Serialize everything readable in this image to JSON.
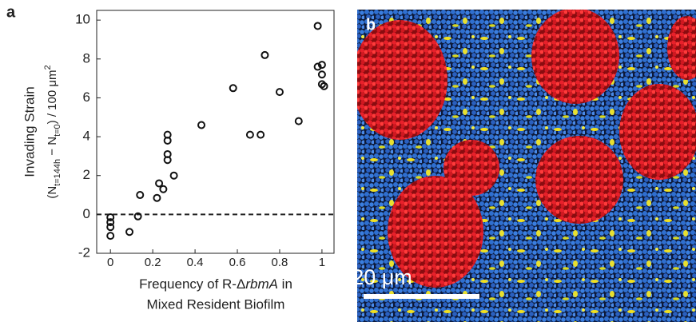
{
  "chart_data": {
    "type": "scatter",
    "panel_label": "a",
    "y_label_title": "Invading Strain",
    "y_label_formula": [
      "(N",
      "t=144h",
      " − N",
      "t=0",
      ") / 100 μm",
      "2"
    ],
    "x_label_line1": [
      "Frequency of R-Δ",
      "rbmA",
      " in"
    ],
    "x_label_line2": "Mixed Resident Biofilm",
    "x": [
      0,
      0,
      0,
      0,
      0.09,
      0.13,
      0.14,
      0.22,
      0.23,
      0.25,
      0.27,
      0.27,
      0.27,
      0.27,
      0.3,
      0.43,
      0.58,
      0.66,
      0.71,
      0.73,
      0.8,
      0.89,
      0.98,
      0.98,
      1.0,
      1.0,
      1.0,
      1.01
    ],
    "values": [
      -0.15,
      -0.4,
      -0.65,
      -1.1,
      -0.9,
      -0.1,
      1.0,
      0.85,
      1.6,
      1.3,
      4.1,
      3.8,
      3.1,
      2.8,
      2.0,
      4.6,
      6.5,
      4.1,
      4.1,
      8.2,
      6.3,
      4.8,
      9.7,
      7.6,
      7.7,
      7.2,
      6.7,
      6.6
    ],
    "color": "#111111",
    "marker": "open-circle",
    "hline": 0,
    "xlim": [
      -0.065,
      1.057
    ],
    "ylim": [
      -2,
      10.5
    ],
    "xticks": [
      0,
      0.2,
      0.4,
      0.6,
      0.8,
      1
    ],
    "yticks": [
      -2,
      0,
      2,
      4,
      6,
      8,
      10
    ],
    "grid": false
  },
  "image_panel": {
    "panel_label": "b",
    "scale_bar_label": "20 μm"
  }
}
